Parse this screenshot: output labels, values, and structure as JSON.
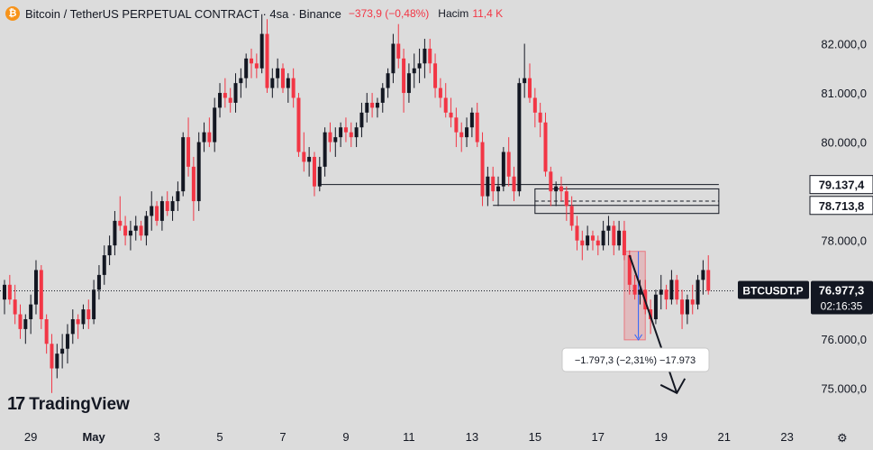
{
  "header": {
    "coin_icon": "bitcoin-icon",
    "coin_glyph": "₿",
    "title": "Bitcoin / TetherUS PERPETUAL CONTRACT · 4sa · Binance",
    "change": "−373,9 (−0,48%)",
    "volume_label": "Hacim",
    "volume_value": "11,4 K"
  },
  "branding": {
    "logo_icon": "tradingview-logo-icon",
    "logo_mark": "17",
    "logo_text": "TradingView"
  },
  "settings_icon": "gear-icon",
  "colors": {
    "up": "#131722",
    "down": "#f23645",
    "background": "#dcdcdc",
    "axis_text": "#131722"
  },
  "chart_data": {
    "type": "candlestick",
    "symbol": "BTCUSDT.P",
    "interval": "4h",
    "ylim": [
      74600,
      82600
    ],
    "y_ticks": [
      {
        "value": 82000,
        "label": "82.000,0"
      },
      {
        "value": 81000,
        "label": "81.000,0"
      },
      {
        "value": 80000,
        "label": "80.000,0"
      },
      {
        "value": 78000,
        "label": "78.000,0"
      },
      {
        "value": 76000,
        "label": "76.000,0"
      },
      {
        "value": 75000,
        "label": "75.000,0"
      }
    ],
    "x_ticks": [
      {
        "index": 5,
        "label": "29"
      },
      {
        "index": 17,
        "label": "May"
      },
      {
        "index": 29,
        "label": "3"
      },
      {
        "index": 41,
        "label": "5"
      },
      {
        "index": 53,
        "label": "7"
      },
      {
        "index": 65,
        "label": "9"
      },
      {
        "index": 77,
        "label": "11"
      },
      {
        "index": 89,
        "label": "13"
      },
      {
        "index": 101,
        "label": "15"
      },
      {
        "index": 113,
        "label": "17"
      },
      {
        "index": 125,
        "label": "19"
      },
      {
        "index": 137,
        "label": "21"
      },
      {
        "index": 149,
        "label": "23"
      }
    ],
    "price_labels": [
      {
        "value": 79137.4,
        "label": "79.137,4"
      },
      {
        "value": 78713.8,
        "label": "78.713,8"
      }
    ],
    "last_price": {
      "value": 76977.3,
      "label": "76.977,3",
      "symbol": "BTCUSDT.P",
      "countdown": "02:16:35"
    },
    "measure": {
      "label": "−1.797,3 (−2,31%) −17.973",
      "from_value": 77780,
      "to_value": 75980,
      "start_index": 118,
      "end_index": 122
    },
    "levels": [
      {
        "value": 79137,
        "start_index": 60,
        "end_index": 136
      },
      {
        "value": 78713,
        "start_index": 93,
        "end_index": 136
      }
    ],
    "zone": {
      "top": 79050,
      "bottom": 78550,
      "mid": 78800,
      "start_index": 101,
      "end_index": 136
    },
    "arrow": {
      "from_index": 119,
      "from_value": 77700,
      "to_index": 128,
      "to_value": 74900
    },
    "ohlc": [
      [
        76800,
        77200,
        76500,
        77100
      ],
      [
        77100,
        77300,
        76700,
        76800
      ],
      [
        76800,
        77100,
        76300,
        76500
      ],
      [
        76500,
        76700,
        76000,
        76200
      ],
      [
        76200,
        76500,
        75900,
        76400
      ],
      [
        76400,
        76900,
        76100,
        76700
      ],
      [
        76700,
        77600,
        76500,
        77400
      ],
      [
        77400,
        77500,
        76200,
        76400
      ],
      [
        76400,
        76500,
        75700,
        75900
      ],
      [
        75900,
        76100,
        74900,
        75400
      ],
      [
        75400,
        75900,
        75200,
        75700
      ],
      [
        75700,
        76100,
        75400,
        75800
      ],
      [
        75800,
        76300,
        75500,
        76100
      ],
      [
        76100,
        76600,
        75900,
        76400
      ],
      [
        76400,
        76500,
        76000,
        76300
      ],
      [
        76300,
        76700,
        76200,
        76600
      ],
      [
        76600,
        76800,
        76200,
        76400
      ],
      [
        76400,
        77200,
        76300,
        77000
      ],
      [
        77000,
        77500,
        76800,
        77300
      ],
      [
        77300,
        77900,
        77100,
        77700
      ],
      [
        77700,
        78100,
        77500,
        77900
      ],
      [
        77900,
        78600,
        77700,
        78400
      ],
      [
        78400,
        78900,
        78200,
        78300
      ],
      [
        78300,
        78500,
        77900,
        78100
      ],
      [
        78100,
        78400,
        77800,
        78200
      ],
      [
        78200,
        78500,
        78000,
        78300
      ],
      [
        78300,
        78400,
        78000,
        78100
      ],
      [
        78100,
        78600,
        77900,
        78500
      ],
      [
        78500,
        79000,
        78200,
        78700
      ],
      [
        78700,
        78800,
        78300,
        78400
      ],
      [
        78400,
        78900,
        78200,
        78800
      ],
      [
        78800,
        79000,
        78500,
        78600
      ],
      [
        78600,
        78900,
        78400,
        78800
      ],
      [
        78800,
        79200,
        78600,
        79000
      ],
      [
        79000,
        80200,
        78900,
        80100
      ],
      [
        80100,
        80500,
        79300,
        79500
      ],
      [
        79500,
        79700,
        78400,
        78800
      ],
      [
        78800,
        80200,
        78600,
        80000
      ],
      [
        80000,
        80400,
        79800,
        80200
      ],
      [
        80200,
        80500,
        79900,
        80000
      ],
      [
        80000,
        80900,
        79800,
        80700
      ],
      [
        80700,
        81200,
        80500,
        81000
      ],
      [
        81000,
        81300,
        80700,
        80900
      ],
      [
        80900,
        81100,
        80600,
        80800
      ],
      [
        80800,
        81400,
        80600,
        81200
      ],
      [
        81200,
        81500,
        80900,
        81300
      ],
      [
        81300,
        81800,
        81100,
        81700
      ],
      [
        81700,
        81900,
        81300,
        81600
      ],
      [
        81600,
        81800,
        81300,
        81500
      ],
      [
        81500,
        82600,
        81400,
        82200
      ],
      [
        82200,
        82500,
        81000,
        81100
      ],
      [
        81100,
        81500,
        80900,
        81300
      ],
      [
        81300,
        81700,
        81100,
        81500
      ],
      [
        81500,
        81600,
        81000,
        81100
      ],
      [
        81100,
        81400,
        80800,
        81300
      ],
      [
        81300,
        81500,
        80700,
        80900
      ],
      [
        80900,
        81000,
        79700,
        79800
      ],
      [
        79800,
        80200,
        79400,
        79600
      ],
      [
        79600,
        79900,
        79300,
        79700
      ],
      [
        79700,
        79800,
        78900,
        79100
      ],
      [
        79100,
        79700,
        79000,
        79500
      ],
      [
        79500,
        80300,
        79300,
        80200
      ],
      [
        80200,
        80400,
        79800,
        80000
      ],
      [
        80000,
        80300,
        79700,
        80100
      ],
      [
        80100,
        80400,
        79900,
        80300
      ],
      [
        80300,
        80500,
        80000,
        80200
      ],
      [
        80200,
        80400,
        79900,
        80100
      ],
      [
        80100,
        80400,
        79900,
        80300
      ],
      [
        80300,
        80800,
        80100,
        80600
      ],
      [
        80600,
        81000,
        80400,
        80800
      ],
      [
        80800,
        81000,
        80500,
        80700
      ],
      [
        80700,
        80900,
        80500,
        80800
      ],
      [
        80800,
        81200,
        80600,
        81100
      ],
      [
        81100,
        81500,
        80900,
        81400
      ],
      [
        81400,
        82200,
        81200,
        82000
      ],
      [
        82000,
        82400,
        81500,
        81700
      ],
      [
        81700,
        81900,
        80600,
        81000
      ],
      [
        81000,
        81600,
        80800,
        81400
      ],
      [
        81400,
        81800,
        81100,
        81500
      ],
      [
        81500,
        81900,
        81200,
        81600
      ],
      [
        81600,
        82100,
        81300,
        81900
      ],
      [
        81900,
        82100,
        81400,
        81600
      ],
      [
        81600,
        81800,
        80900,
        81100
      ],
      [
        81100,
        81300,
        80700,
        80900
      ],
      [
        80900,
        81200,
        80500,
        80600
      ],
      [
        80600,
        80900,
        80300,
        80500
      ],
      [
        80500,
        80700,
        79900,
        80200
      ],
      [
        80200,
        80400,
        79800,
        80100
      ],
      [
        80100,
        80500,
        79900,
        80300
      ],
      [
        80300,
        80700,
        80100,
        80600
      ],
      [
        80600,
        80800,
        79900,
        80000
      ],
      [
        80000,
        80200,
        78700,
        78900
      ],
      [
        78900,
        79500,
        78700,
        79300
      ],
      [
        79300,
        79500,
        78800,
        79000
      ],
      [
        79000,
        79300,
        78700,
        79100
      ],
      [
        79100,
        79900,
        79000,
        79800
      ],
      [
        79800,
        80100,
        79100,
        79300
      ],
      [
        79300,
        79500,
        78800,
        79000
      ],
      [
        79000,
        81300,
        78900,
        81200
      ],
      [
        81200,
        82000,
        80900,
        81300
      ],
      [
        81300,
        81600,
        80800,
        80900
      ],
      [
        80900,
        81100,
        80300,
        80600
      ],
      [
        80600,
        80800,
        80100,
        80400
      ],
      [
        80400,
        80600,
        79300,
        79400
      ],
      [
        79400,
        79500,
        78700,
        79000
      ],
      [
        79000,
        79200,
        78700,
        79100
      ],
      [
        79100,
        79300,
        78800,
        79000
      ],
      [
        79000,
        79100,
        78400,
        78700
      ],
      [
        78700,
        78900,
        78200,
        78300
      ],
      [
        78300,
        78500,
        77800,
        78000
      ],
      [
        78000,
        78200,
        77600,
        77900
      ],
      [
        77900,
        78300,
        77800,
        78100
      ],
      [
        78100,
        78200,
        77800,
        78000
      ],
      [
        78000,
        78100,
        77700,
        77900
      ],
      [
        77900,
        78400,
        77800,
        78200
      ],
      [
        78200,
        78500,
        77900,
        78300
      ],
      [
        78300,
        78400,
        77700,
        77900
      ],
      [
        77900,
        78400,
        77800,
        78200
      ],
      [
        78200,
        78400,
        77600,
        77700
      ],
      [
        77700,
        77800,
        76900,
        77100
      ],
      [
        77100,
        77300,
        76800,
        76900
      ],
      [
        76900,
        77200,
        76700,
        77000
      ],
      [
        77000,
        77200,
        76500,
        76600
      ],
      [
        76600,
        76800,
        76100,
        76400
      ],
      [
        76400,
        77000,
        76300,
        76900
      ],
      [
        76900,
        77300,
        76600,
        77000
      ],
      [
        77000,
        77100,
        76600,
        76800
      ],
      [
        76800,
        77400,
        76700,
        77200
      ],
      [
        77200,
        77300,
        76700,
        76800
      ],
      [
        76800,
        77000,
        76200,
        76500
      ],
      [
        76500,
        76900,
        76300,
        76800
      ],
      [
        76800,
        77100,
        76500,
        76700
      ],
      [
        76700,
        77300,
        76600,
        77200
      ],
      [
        77200,
        77600,
        76900,
        77400
      ],
      [
        77400,
        77700,
        76900,
        76977.3
      ]
    ]
  }
}
